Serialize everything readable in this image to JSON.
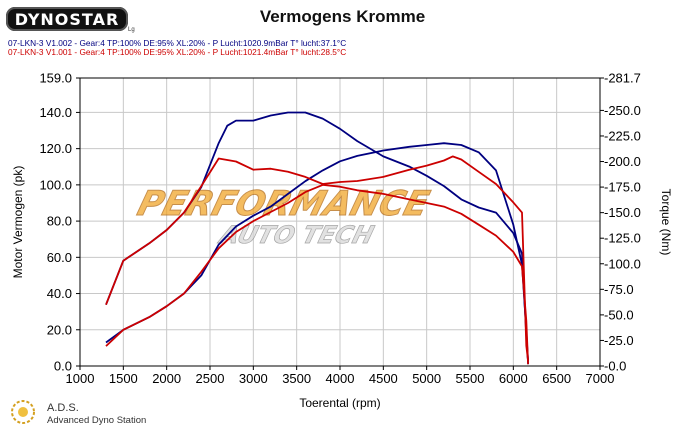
{
  "brand": {
    "logo_text": "DYNOSTAR",
    "logo_suffix": "Lg"
  },
  "footer": {
    "name": "A.D.S.",
    "subtitle": "Advanced Dyno Station"
  },
  "runs": [
    {
      "label": "07-LKN-3 V1.002 - Gear:4 TP:100% DE:95% XL:20%   - P Lucht:1020.9mBar T° lucht:37.1°C",
      "color": "#000080"
    },
    {
      "label": "07-LKN-3 V1.001 - Gear:4 TP:100% DE:95% XL:20%   - P Lucht:1021.4mBar T° lucht:28.5°C",
      "color": "#cc0000"
    }
  ],
  "watermark": {
    "line1": "PERFORMANCE",
    "line2": "AUTO TECH"
  },
  "chart_data": {
    "type": "line",
    "title": "Vermogens Kromme",
    "xlabel": "Toerental (rpm)",
    "ylabel": "Motor Vermogen (pk)",
    "y2label": "Torque (Nm)",
    "xlim": [
      1000,
      7000
    ],
    "ylim": [
      0,
      159
    ],
    "y2lim": [
      0,
      281.7
    ],
    "xticks": [
      "1000",
      "1500",
      "2000",
      "2500",
      "3000",
      "3500",
      "4000",
      "4500",
      "5000",
      "5500",
      "6000",
      "6500",
      "7000"
    ],
    "yticks": [
      "0.0",
      "20.0",
      "40.0",
      "60.0",
      "80.0",
      "100.0",
      "120.0",
      "140.0",
      "159.0"
    ],
    "y2ticks": [
      "-0.0",
      "-25.0",
      "-50.0",
      "-75.0",
      "-100.0",
      "-125.0",
      "-150.0",
      "-175.0",
      "-200.0",
      "-225.0",
      "-250.0",
      "-281.7"
    ],
    "grid": true,
    "series": [
      {
        "run": "V1.002",
        "quantity": "power",
        "axis": "left",
        "color": "#000080",
        "x": [
          1300,
          1500,
          1800,
          2000,
          2200,
          2400,
          2600,
          2800,
          3000,
          3200,
          3400,
          3600,
          3800,
          4000,
          4200,
          4500,
          4800,
          5000,
          5200,
          5400,
          5600,
          5800,
          6000,
          6100,
          6150,
          6170
        ],
        "y": [
          13,
          20,
          27,
          33,
          40,
          50,
          67,
          77,
          83,
          88,
          95,
          102,
          108,
          113,
          116,
          119,
          121,
          122,
          123,
          122,
          118,
          108,
          78,
          56,
          20,
          1
        ]
      },
      {
        "run": "V1.002",
        "quantity": "torque",
        "axis": "right",
        "color": "#000080",
        "x": [
          1300,
          1500,
          1800,
          2000,
          2200,
          2400,
          2600,
          2700,
          2800,
          3000,
          3200,
          3400,
          3600,
          3800,
          4000,
          4200,
          4500,
          4800,
          5000,
          5200,
          5400,
          5600,
          5800,
          6000,
          6100,
          6150,
          6170
        ],
        "y": [
          60,
          103,
          120,
          133,
          150,
          175,
          218,
          235,
          240,
          240,
          245,
          248,
          248,
          242,
          232,
          220,
          205,
          195,
          186,
          176,
          163,
          155,
          150,
          130,
          110,
          30,
          5
        ]
      },
      {
        "run": "V1.001",
        "quantity": "power",
        "axis": "left",
        "color": "#cc0000",
        "x": [
          1300,
          1500,
          1800,
          2000,
          2200,
          2400,
          2600,
          2800,
          3000,
          3200,
          3400,
          3600,
          3800,
          4000,
          4200,
          4500,
          4800,
          5000,
          5200,
          5400,
          5600,
          5800,
          6000,
          6100,
          6150,
          6170
        ],
        "y": [
          11,
          20,
          27,
          33,
          40,
          52,
          65,
          74,
          80,
          85,
          90,
          96,
          100,
          99,
          97,
          95,
          92,
          90,
          88,
          84,
          78,
          72,
          63,
          55,
          25,
          1
        ]
      },
      {
        "run": "V1.001",
        "quantity": "torque",
        "axis": "right",
        "color": "#cc0000",
        "x": [
          1300,
          1500,
          1800,
          2000,
          2200,
          2400,
          2600,
          2800,
          3000,
          3200,
          3400,
          3600,
          3800,
          4000,
          4200,
          4500,
          4800,
          5000,
          5200,
          5300,
          5400,
          5600,
          5800,
          6000,
          6100,
          6150,
          6170
        ],
        "y": [
          60,
          103,
          120,
          133,
          150,
          176,
          203,
          200,
          192,
          193,
          190,
          185,
          178,
          180,
          181,
          185,
          192,
          196,
          201,
          205,
          202,
          190,
          178,
          160,
          150,
          20,
          5
        ]
      }
    ]
  }
}
